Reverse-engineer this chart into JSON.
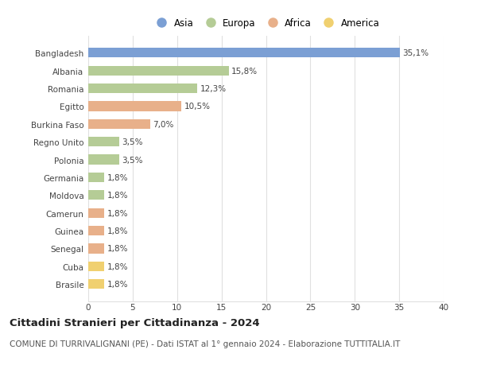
{
  "countries": [
    "Bangladesh",
    "Albania",
    "Romania",
    "Egitto",
    "Burkina Faso",
    "Regno Unito",
    "Polonia",
    "Germania",
    "Moldova",
    "Camerun",
    "Guinea",
    "Senegal",
    "Cuba",
    "Brasile"
  ],
  "values": [
    35.1,
    15.8,
    12.3,
    10.5,
    7.0,
    3.5,
    3.5,
    1.8,
    1.8,
    1.8,
    1.8,
    1.8,
    1.8,
    1.8
  ],
  "labels": [
    "35,1%",
    "15,8%",
    "12,3%",
    "10,5%",
    "7,0%",
    "3,5%",
    "3,5%",
    "1,8%",
    "1,8%",
    "1,8%",
    "1,8%",
    "1,8%",
    "1,8%",
    "1,8%"
  ],
  "continents": [
    "Asia",
    "Europa",
    "Europa",
    "Africa",
    "Africa",
    "Europa",
    "Europa",
    "Europa",
    "Europa",
    "Africa",
    "Africa",
    "Africa",
    "America",
    "America"
  ],
  "colors": {
    "Asia": "#7b9fd4",
    "Europa": "#b5cc96",
    "Africa": "#e8b08a",
    "America": "#f0d070"
  },
  "xlim": [
    0,
    40
  ],
  "xticks": [
    0,
    5,
    10,
    15,
    20,
    25,
    30,
    35,
    40
  ],
  "title": "Cittadini Stranieri per Cittadinanza - 2024",
  "subtitle": "COMUNE DI TURRIVALIGNANI (PE) - Dati ISTAT al 1° gennaio 2024 - Elaborazione TUTTITALIA.IT",
  "background_color": "#ffffff",
  "grid_color": "#e0e0e0",
  "bar_height": 0.55,
  "title_fontsize": 9.5,
  "subtitle_fontsize": 7.5,
  "label_fontsize": 7.5,
  "tick_fontsize": 7.5,
  "legend_fontsize": 8.5
}
